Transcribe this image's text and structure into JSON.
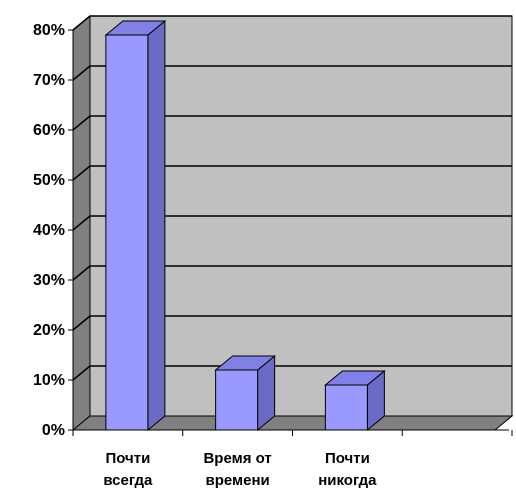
{
  "chart_data": {
    "type": "bar",
    "style": "3d-column",
    "categories": [
      [
        "Почти",
        "всегда"
      ],
      [
        "Время от",
        "времени"
      ],
      [
        "Почти",
        "никогда"
      ],
      [
        "",
        ""
      ]
    ],
    "values": [
      79,
      12,
      9,
      null
    ],
    "y_unit": "%",
    "ylim": [
      0,
      80
    ],
    "y_ticks": [
      "0%",
      "10%",
      "20%",
      "30%",
      "40%",
      "50%",
      "60%",
      "70%",
      "80%"
    ],
    "grid": true,
    "legend": "none",
    "colors": {
      "bar_front": "#9999ff",
      "bar_side": "#6b6bc6",
      "bar_top": "#8080e6",
      "wall": "#c0c0c0",
      "floor": "#808080"
    }
  }
}
